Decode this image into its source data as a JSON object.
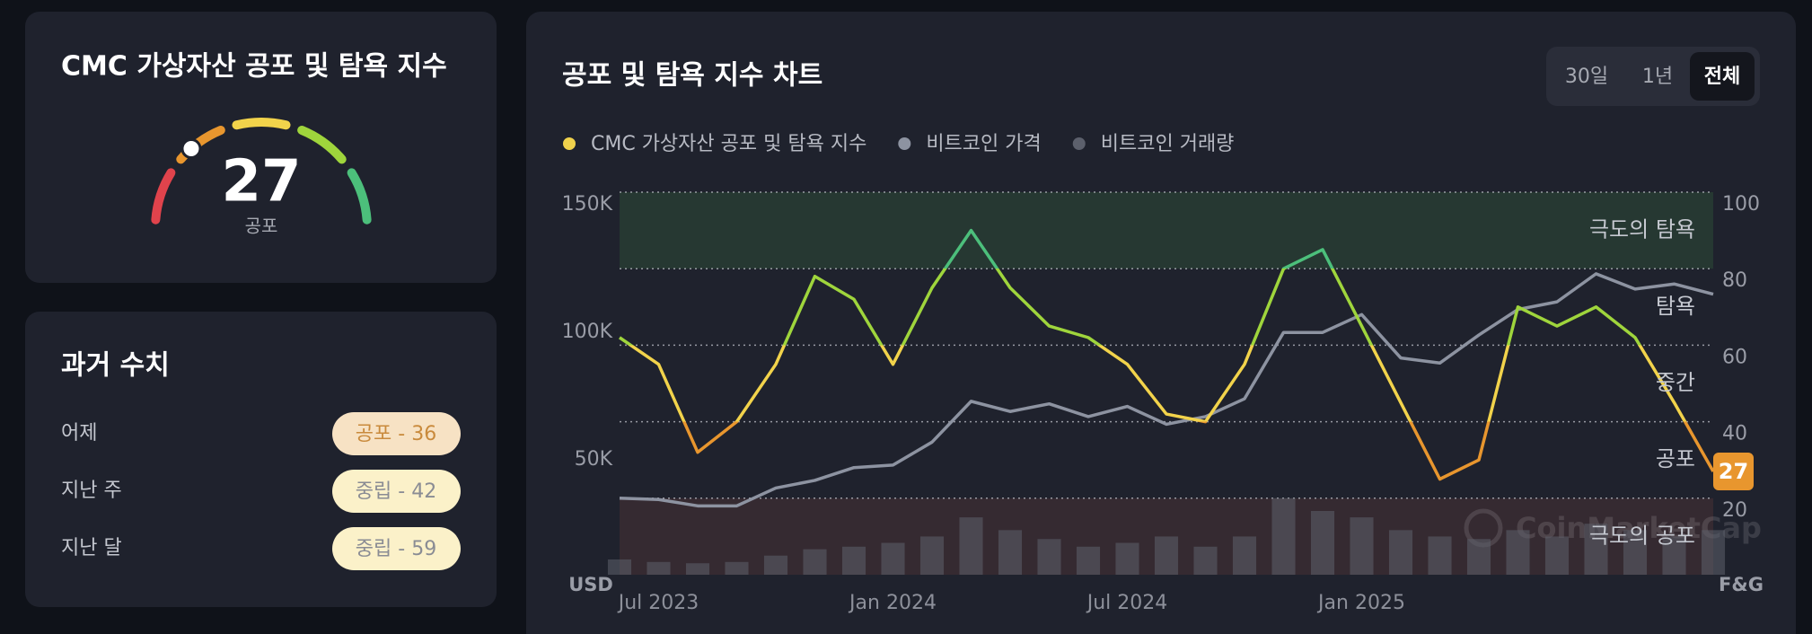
{
  "gauge_panel": {
    "title": "CMC 가상자산 공포 및 탐욕 지수",
    "value": 27,
    "label": "공포"
  },
  "history_panel": {
    "title": "과거 수치",
    "rows": [
      {
        "period": "어제",
        "label": "공포 - 36",
        "bg": "#f7e2c4",
        "color": "#c98a3c"
      },
      {
        "period": "지난 주",
        "label": "중립 - 42",
        "bg": "#fbf1c9",
        "color": "#8a8c94"
      },
      {
        "period": "지난 달",
        "label": "중립 - 59",
        "bg": "#fbf1c9",
        "color": "#8a8c94"
      }
    ]
  },
  "chart_panel": {
    "title": "공포 및 탐욕 지수 차트",
    "tabs": [
      "30일",
      "1년",
      "전체"
    ],
    "active_tab": 2
  },
  "chart_data": {
    "type": "line",
    "x": [
      "2023-06",
      "2023-07",
      "2023-08",
      "2023-09",
      "2023-10",
      "2023-11",
      "2023-12",
      "2024-01",
      "2024-02",
      "2024-03",
      "2024-04",
      "2024-05",
      "2024-06",
      "2024-07",
      "2024-08",
      "2024-09",
      "2024-10",
      "2024-11",
      "2024-12",
      "2025-01",
      "2025-02",
      "2025-03",
      "2025-04",
      "2025-05",
      "2025-06",
      "2025-07",
      "2025-08",
      "2025-09",
      "2025-10"
    ],
    "series": [
      {
        "name": "CMC 가상자산 공포 및 탐욕 지수",
        "color": "#f0d24c",
        "axis": "y2",
        "values": [
          62,
          55,
          32,
          40,
          55,
          78,
          72,
          55,
          75,
          90,
          75,
          65,
          62,
          55,
          42,
          40,
          55,
          80,
          85,
          65,
          45,
          25,
          30,
          70,
          65,
          70,
          62,
          45,
          27
        ]
      },
      {
        "name": "비트코인 가격",
        "color": "#8d93a1",
        "values": [
          30000,
          29500,
          27000,
          27000,
          34000,
          37000,
          42000,
          43000,
          52000,
          68000,
          64000,
          67000,
          62000,
          66000,
          59000,
          62000,
          69000,
          95000,
          95000,
          102000,
          85000,
          83000,
          94000,
          104000,
          107000,
          118000,
          112000,
          114000,
          110000
        ]
      },
      {
        "name": "비트코인 거래량",
        "color": "#5c606c",
        "type": "bar",
        "axis": "y3",
        "values": [
          12,
          10,
          9,
          10,
          15,
          20,
          22,
          25,
          30,
          45,
          35,
          28,
          22,
          25,
          30,
          22,
          30,
          60,
          50,
          45,
          35,
          30,
          28,
          35,
          30,
          40,
          35,
          30,
          35
        ]
      }
    ],
    "xlim": [
      "2023-06",
      "2025-10"
    ],
    "xticks": [
      {
        "value": "2023-07",
        "label": "Jul 2023"
      },
      {
        "value": "2024-01",
        "label": "Jan 2024"
      },
      {
        "value": "2024-07",
        "label": "Jul 2024"
      },
      {
        "value": "2025-01",
        "label": "Jan 2025"
      }
    ],
    "ylim": [
      0,
      150000
    ],
    "yticks": [
      {
        "value": 50000,
        "label": "50K"
      },
      {
        "value": 100000,
        "label": "100K"
      },
      {
        "value": 150000,
        "label": "150K"
      }
    ],
    "y2lim": [
      0,
      100
    ],
    "y2ticks": [
      20,
      40,
      60,
      80,
      100
    ],
    "y3lim": [
      0,
      300
    ],
    "ylabel": "USD",
    "y2label": "F&G",
    "grid": true,
    "zones": [
      {
        "label": "극도의 공포",
        "from": 0,
        "to": 20,
        "color": "#e0434c",
        "fill": "#352a31"
      },
      {
        "label": "공포",
        "from": 20,
        "to": 40,
        "color": "#e8962e"
      },
      {
        "label": "중간",
        "from": 40,
        "to": 60,
        "color": "#f2d34b"
      },
      {
        "label": "탐욕",
        "from": 60,
        "to": 80,
        "color": "#9fd53c"
      },
      {
        "label": "극도의 탐욕",
        "from": 80,
        "to": 100,
        "color": "#4cbf7b",
        "fill": "#263832"
      }
    ],
    "watermark": "CoinMarketCap"
  }
}
